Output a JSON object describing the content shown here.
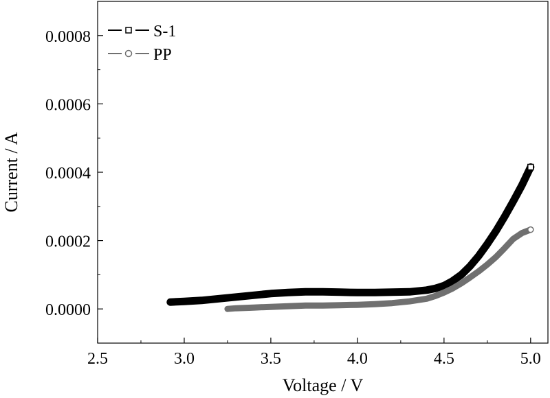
{
  "chart_data": {
    "type": "line",
    "title": "",
    "xlabel": "Voltage / V",
    "ylabel": "Current / A",
    "xlim": [
      2.5,
      5.1
    ],
    "ylim": [
      -0.0001,
      0.0009
    ],
    "xticks": [
      2.5,
      3.0,
      3.5,
      4.0,
      4.5,
      5.0
    ],
    "xtick_labels": [
      "2.5",
      "3.0",
      "3.5",
      "4.0",
      "4.5",
      "5.0"
    ],
    "yticks": [
      0.0,
      0.0002,
      0.0004,
      0.0006,
      0.0008
    ],
    "ytick_labels": [
      "0.0000",
      "0.0002",
      "0.0004",
      "0.0006",
      "0.0008"
    ],
    "grid": false,
    "legend": "top-left",
    "series": [
      {
        "name": "S-1",
        "color": "#000000",
        "marker": "square",
        "x": [
          2.92,
          3.0,
          3.1,
          3.2,
          3.3,
          3.4,
          3.5,
          3.6,
          3.7,
          3.8,
          3.9,
          4.0,
          4.1,
          4.2,
          4.3,
          4.4,
          4.45,
          4.5,
          4.55,
          4.6,
          4.65,
          4.7,
          4.75,
          4.8,
          4.85,
          4.9,
          4.95,
          5.0
        ],
        "y": [
          2e-05,
          2.2e-05,
          2.5e-05,
          3e-05,
          3.5e-05,
          4e-05,
          4.5e-05,
          4.8e-05,
          5e-05,
          5e-05,
          4.9e-05,
          4.8e-05,
          4.8e-05,
          4.9e-05,
          5e-05,
          5.5e-05,
          6e-05,
          6.8e-05,
          8.2e-05,
          0.0001,
          0.000125,
          0.000155,
          0.00019,
          0.000228,
          0.00027,
          0.000315,
          0.000362,
          0.000415
        ]
      },
      {
        "name": "PP",
        "color": "#707070",
        "marker": "circle",
        "x": [
          3.25,
          3.3,
          3.4,
          3.5,
          3.6,
          3.7,
          3.8,
          3.9,
          4.0,
          4.1,
          4.2,
          4.3,
          4.4,
          4.45,
          4.5,
          4.55,
          4.6,
          4.65,
          4.7,
          4.75,
          4.8,
          4.85,
          4.9,
          4.95,
          5.0
        ],
        "y": [
          0.0,
          2e-06,
          4e-06,
          6e-06,
          8e-06,
          1e-05,
          1e-05,
          1.1e-05,
          1.2e-05,
          1.4e-05,
          1.7e-05,
          2.2e-05,
          3e-05,
          3.8e-05,
          4.8e-05,
          6e-05,
          7.5e-05,
          9.2e-05,
          0.00011,
          0.00013,
          0.000152,
          0.000178,
          0.000205,
          0.000222,
          0.000232
        ]
      }
    ]
  }
}
